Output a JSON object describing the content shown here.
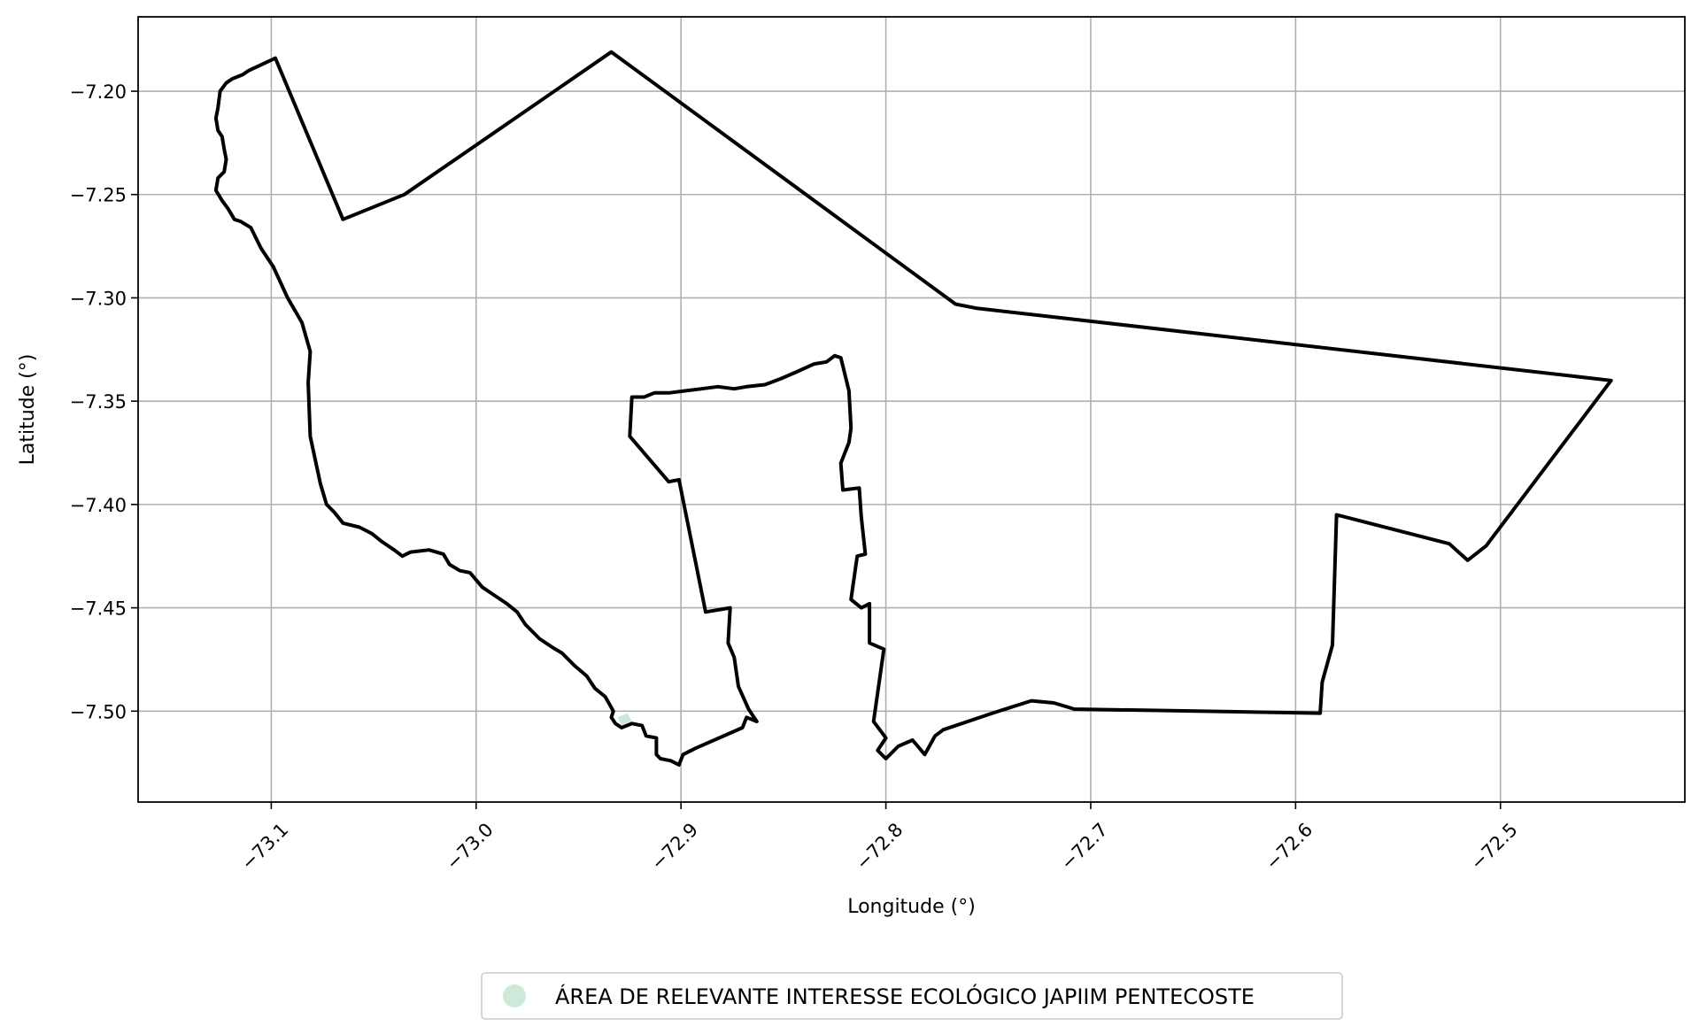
{
  "chart_data": {
    "type": "map",
    "xlabel": "Longitude (°)",
    "ylabel": "Latitude (°)",
    "xlim": [
      -73.165,
      -72.41
    ],
    "ylim": [
      -7.544,
      -7.164
    ],
    "x_ticks": [
      -73.1,
      -73.0,
      -72.9,
      -72.8,
      -72.7,
      -72.6,
      -72.5
    ],
    "x_tick_labels": [
      "−73.1",
      "−73.0",
      "−72.9",
      "−72.8",
      "−72.7",
      "−72.6",
      "−72.5"
    ],
    "y_ticks": [
      -7.2,
      -7.25,
      -7.3,
      -7.35,
      -7.4,
      -7.45,
      -7.5
    ],
    "y_tick_labels": [
      "−7.20",
      "−7.25",
      "−7.30",
      "−7.35",
      "−7.40",
      "−7.45",
      "−7.50"
    ],
    "grid": true,
    "legend": {
      "placement": "bottom-center",
      "entries": [
        {
          "label": "ÁREA DE RELEVANTE INTERESSE ECOLÓGICO JAPIIM PENTECOSTE",
          "color": "#cde9da",
          "marker": "circle"
        }
      ]
    },
    "boundary": {
      "stroke": "#000000",
      "outer": [
        [
          -73.098,
          -7.184
        ],
        [
          -73.065,
          -7.262
        ],
        [
          -73.035,
          -7.25
        ],
        [
          -72.934,
          -7.181
        ],
        [
          -72.766,
          -7.303
        ],
        [
          -72.756,
          -7.305
        ],
        [
          -72.446,
          -7.34
        ],
        [
          -72.507,
          -7.42
        ],
        [
          -72.516,
          -7.427
        ],
        [
          -72.525,
          -7.419
        ],
        [
          -72.58,
          -7.405
        ],
        [
          -72.582,
          -7.468
        ],
        [
          -72.587,
          -7.486
        ],
        [
          -72.588,
          -7.501
        ],
        [
          -72.708,
          -7.499
        ],
        [
          -72.718,
          -7.496
        ],
        [
          -72.729,
          -7.495
        ],
        [
          -72.748,
          -7.501
        ],
        [
          -72.772,
          -7.509
        ],
        [
          -72.776,
          -7.512
        ],
        [
          -72.781,
          -7.521
        ],
        [
          -72.787,
          -7.514
        ],
        [
          -72.794,
          -7.517
        ],
        [
          -72.8,
          -7.523
        ],
        [
          -72.804,
          -7.519
        ],
        [
          -72.8,
          -7.513
        ],
        [
          -72.806,
          -7.505
        ],
        [
          -72.801,
          -7.47
        ],
        [
          -72.808,
          -7.467
        ],
        [
          -72.808,
          -7.448
        ],
        [
          -72.812,
          -7.45
        ],
        [
          -72.817,
          -7.446
        ],
        [
          -72.814,
          -7.425
        ],
        [
          -72.81,
          -7.424
        ],
        [
          -72.812,
          -7.406
        ],
        [
          -72.813,
          -7.392
        ],
        [
          -72.821,
          -7.393
        ],
        [
          -72.822,
          -7.38
        ],
        [
          -72.818,
          -7.37
        ],
        [
          -72.817,
          -7.363
        ],
        [
          -72.818,
          -7.345
        ],
        [
          -72.822,
          -7.329
        ],
        [
          -72.825,
          -7.328
        ],
        [
          -72.829,
          -7.331
        ],
        [
          -72.835,
          -7.332
        ],
        [
          -72.844,
          -7.336
        ],
        [
          -72.851,
          -7.339
        ],
        [
          -72.859,
          -7.342
        ],
        [
          -72.868,
          -7.343
        ],
        [
          -72.874,
          -7.344
        ],
        [
          -72.882,
          -7.343
        ],
        [
          -72.89,
          -7.344
        ],
        [
          -72.898,
          -7.345
        ],
        [
          -72.906,
          -7.346
        ],
        [
          -72.913,
          -7.346
        ],
        [
          -72.918,
          -7.348
        ],
        [
          -72.924,
          -7.348
        ],
        [
          -72.925,
          -7.367
        ],
        [
          -72.906,
          -7.389
        ],
        [
          -72.901,
          -7.388
        ],
        [
          -72.888,
          -7.452
        ],
        [
          -72.876,
          -7.45
        ],
        [
          -72.877,
          -7.467
        ],
        [
          -72.874,
          -7.474
        ],
        [
          -72.872,
          -7.488
        ],
        [
          -72.867,
          -7.499
        ],
        [
          -72.863,
          -7.505
        ],
        [
          -72.868,
          -7.503
        ],
        [
          -72.87,
          -7.508
        ],
        [
          -72.893,
          -7.518
        ],
        [
          -72.899,
          -7.521
        ],
        [
          -72.901,
          -7.526
        ],
        [
          -72.905,
          -7.524
        ],
        [
          -72.91,
          -7.523
        ],
        [
          -72.912,
          -7.521
        ],
        [
          -72.912,
          -7.513
        ],
        [
          -72.917,
          -7.512
        ],
        [
          -72.919,
          -7.507
        ],
        [
          -72.924,
          -7.506
        ],
        [
          -72.929,
          -7.508
        ],
        [
          -72.932,
          -7.506
        ],
        [
          -72.934,
          -7.503
        ],
        [
          -72.933,
          -7.5
        ],
        [
          -72.937,
          -7.493
        ],
        [
          -72.942,
          -7.489
        ],
        [
          -72.946,
          -7.483
        ],
        [
          -72.952,
          -7.478
        ],
        [
          -72.958,
          -7.472
        ],
        [
          -72.963,
          -7.469
        ],
        [
          -72.969,
          -7.465
        ],
        [
          -72.976,
          -7.458
        ],
        [
          -72.98,
          -7.452
        ],
        [
          -72.985,
          -7.448
        ],
        [
          -72.991,
          -7.444
        ],
        [
          -72.997,
          -7.44
        ],
        [
          -73.003,
          -7.433
        ],
        [
          -73.008,
          -7.432
        ],
        [
          -73.013,
          -7.429
        ],
        [
          -73.016,
          -7.424
        ],
        [
          -73.023,
          -7.422
        ],
        [
          -73.032,
          -7.423
        ],
        [
          -73.036,
          -7.425
        ],
        [
          -73.04,
          -7.422
        ],
        [
          -73.046,
          -7.418
        ],
        [
          -73.051,
          -7.414
        ],
        [
          -73.057,
          -7.411
        ],
        [
          -73.065,
          -7.409
        ],
        [
          -73.069,
          -7.404
        ],
        [
          -73.073,
          -7.4
        ],
        [
          -73.076,
          -7.39
        ],
        [
          -73.081,
          -7.367
        ],
        [
          -73.082,
          -7.341
        ],
        [
          -73.081,
          -7.326
        ],
        [
          -73.085,
          -7.312
        ],
        [
          -73.092,
          -7.3
        ],
        [
          -73.099,
          -7.285
        ],
        [
          -73.105,
          -7.276
        ],
        [
          -73.11,
          -7.266
        ],
        [
          -73.115,
          -7.263
        ],
        [
          -73.118,
          -7.262
        ],
        [
          -73.121,
          -7.257
        ],
        [
          -73.124,
          -7.253
        ],
        [
          -73.127,
          -7.248
        ],
        [
          -73.126,
          -7.242
        ],
        [
          -73.123,
          -7.239
        ],
        [
          -73.122,
          -7.233
        ],
        [
          -73.123,
          -7.228
        ],
        [
          -73.124,
          -7.222
        ],
        [
          -73.126,
          -7.219
        ],
        [
          -73.127,
          -7.213
        ],
        [
          -73.126,
          -7.208
        ],
        [
          -73.125,
          -7.2
        ],
        [
          -73.122,
          -7.196
        ],
        [
          -73.119,
          -7.194
        ],
        [
          -73.114,
          -7.192
        ],
        [
          -73.111,
          -7.19
        ],
        [
          -73.098,
          -7.184
        ]
      ]
    },
    "highlight_area": [
      [
        -72.931,
        -7.503
      ],
      [
        -72.926,
        -7.501
      ],
      [
        -72.924,
        -7.505
      ],
      [
        -72.929,
        -7.507
      ]
    ]
  }
}
